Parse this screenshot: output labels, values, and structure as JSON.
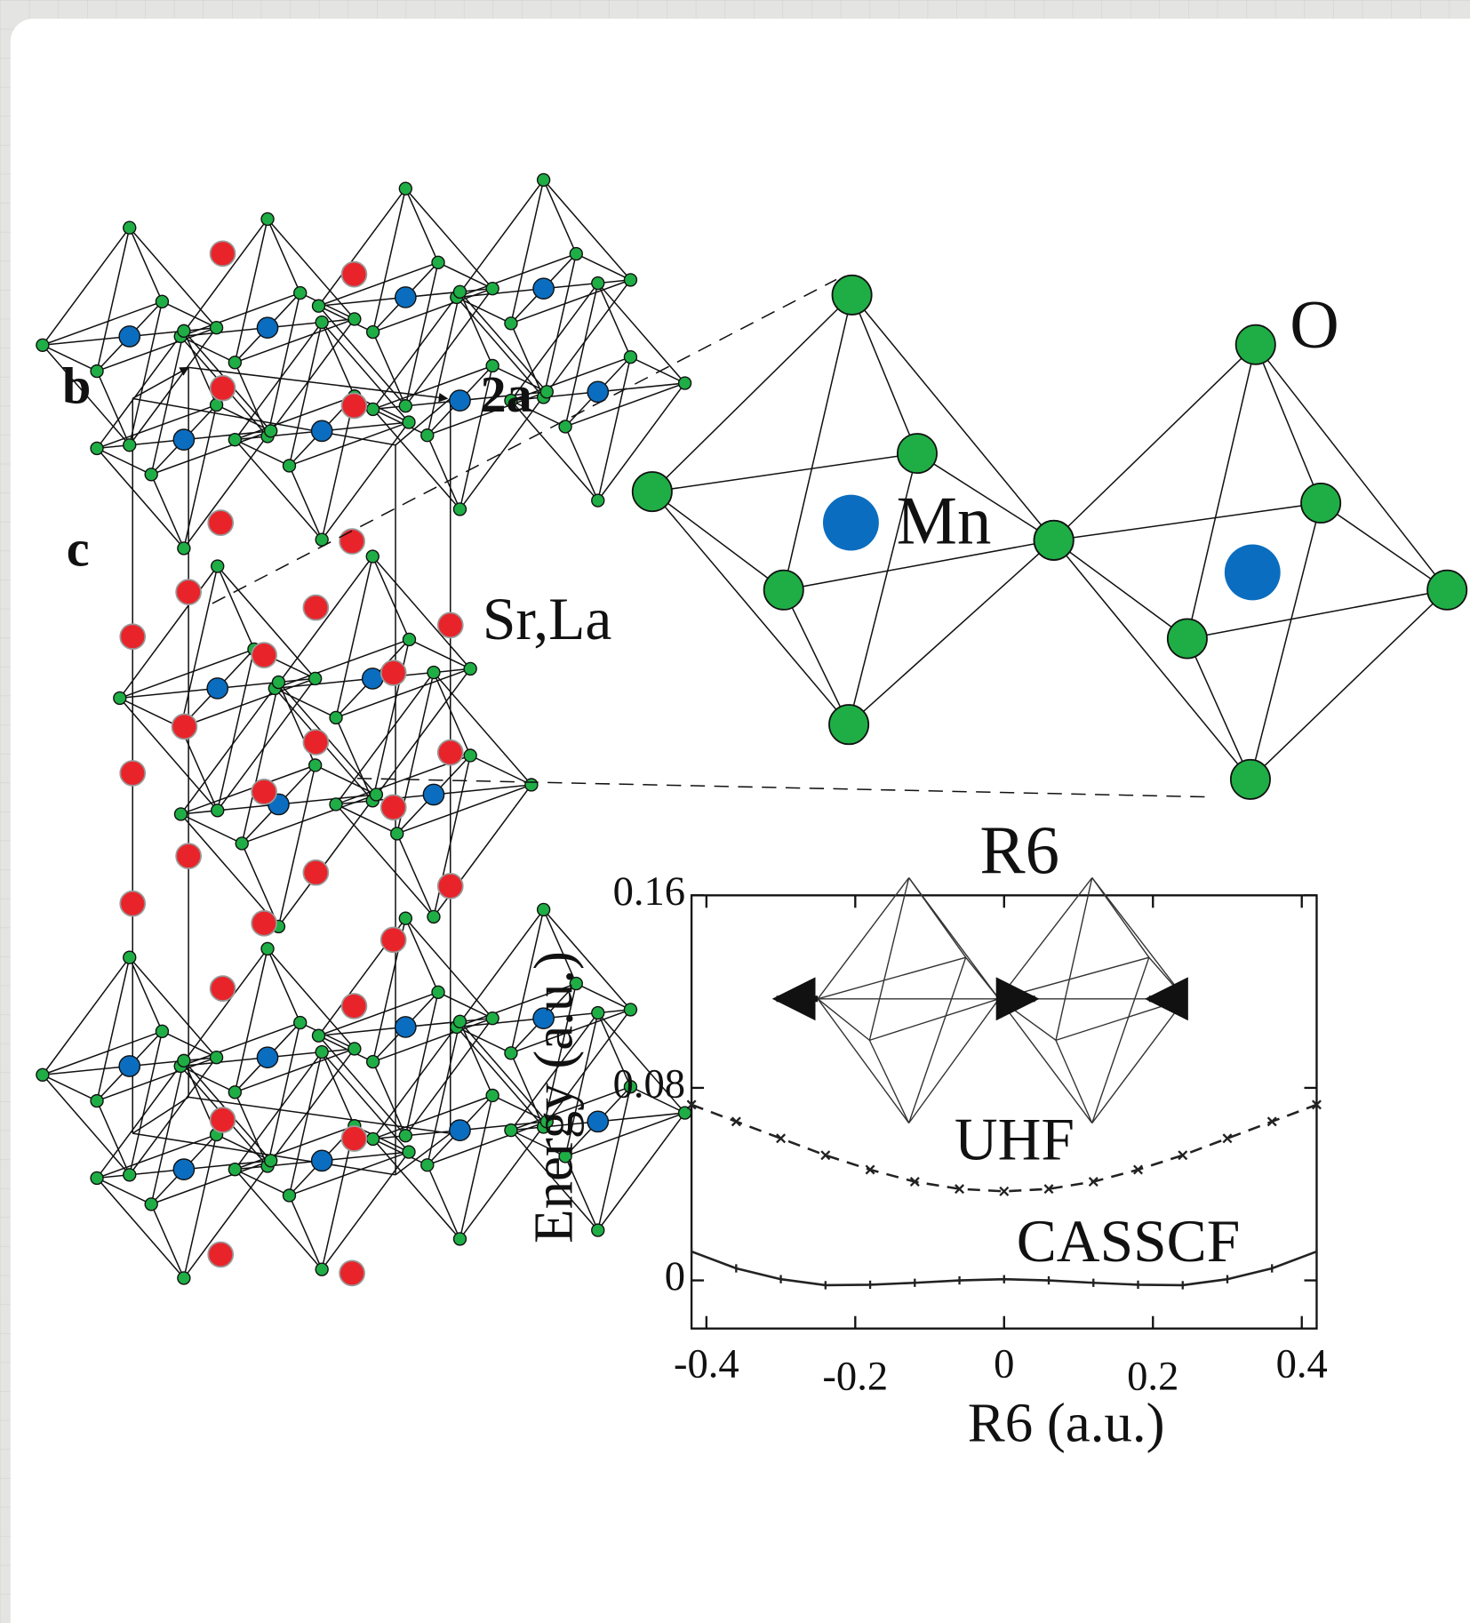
{
  "structure": {
    "axis_b": "b",
    "axis_2a": "2a",
    "axis_c": "c",
    "site_a": "Sr,La",
    "site_b": "Mn",
    "anion": "O"
  },
  "chart_data": {
    "type": "line",
    "title": "R6",
    "xlabel": "R6 (a.u.)",
    "ylabel": "Energy (a.u.)",
    "x": [
      -0.42,
      -0.36,
      -0.3,
      -0.24,
      -0.18,
      -0.12,
      -0.06,
      0,
      0.06,
      0.12,
      0.18,
      0.24,
      0.3,
      0.36,
      0.42
    ],
    "series": [
      {
        "name": "UHF",
        "color": "#222222",
        "dash": true,
        "marker": "x",
        "values": [
          0.073,
          0.066,
          0.059,
          0.052,
          0.046,
          0.041,
          0.038,
          0.037,
          0.038,
          0.041,
          0.046,
          0.052,
          0.059,
          0.066,
          0.073
        ]
      },
      {
        "name": "CASSCF",
        "color": "#222222",
        "dash": false,
        "marker": "tick",
        "values": [
          0.012,
          0.005,
          0.0005,
          -0.002,
          -0.0018,
          -0.001,
          0,
          0.0005,
          0,
          -0.001,
          -0.0018,
          -0.002,
          0.0005,
          0.005,
          0.012
        ]
      }
    ],
    "xlim": [
      -0.42,
      0.42
    ],
    "ylim": [
      -0.02,
      0.16
    ],
    "xticks": [
      -0.4,
      -0.2,
      0,
      0.2,
      0.4
    ],
    "yticks": [
      0,
      0.08,
      0.16
    ]
  }
}
